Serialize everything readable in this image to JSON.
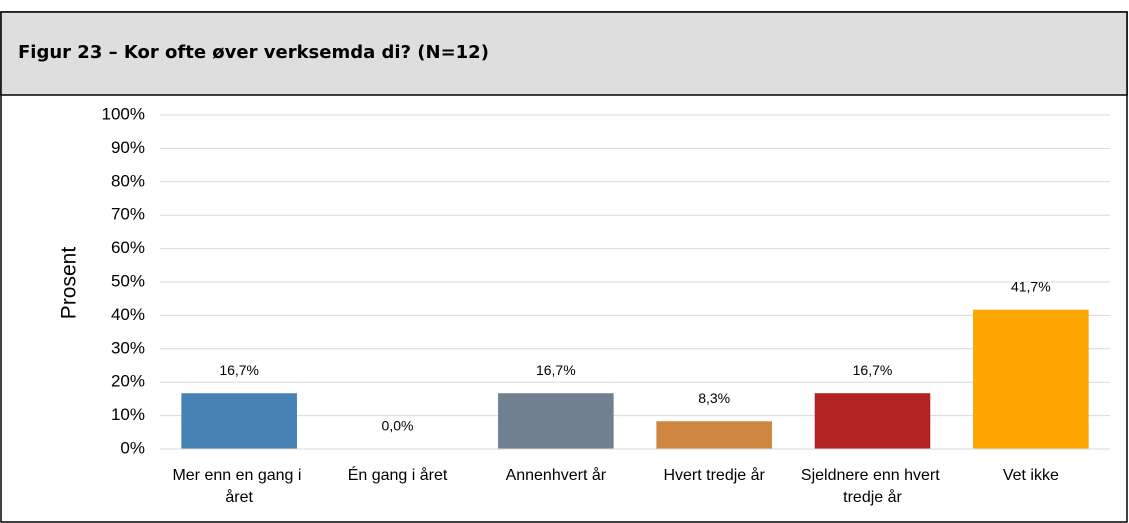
{
  "chart_data": {
    "type": "bar",
    "title": "Figur 23 – Kor ofte øver verksemda di? (N=12)",
    "ylabel": "Prosent",
    "categories": [
      "Mer enn en gang i året",
      "Én gang i året",
      "Annenhvert år",
      "Hvert tredje år",
      "Sjeldnere enn hvert tredje år",
      "Vet ikke"
    ],
    "values": [
      16.7,
      0.0,
      16.7,
      8.3,
      16.7,
      41.7
    ],
    "value_labels": [
      "16,7%",
      "0,0%",
      "16,7%",
      "8,3%",
      "16,7%",
      "41,7%"
    ],
    "colors": [
      "#4682b4",
      "#2e8b57",
      "#708090",
      "#cd853f",
      "#b22222",
      "#ffa500"
    ],
    "ylim": [
      0,
      100
    ],
    "yticks": [
      {
        "value": 0,
        "label": "0%"
      },
      {
        "value": 10,
        "label": "10%"
      },
      {
        "value": 20,
        "label": "20%"
      },
      {
        "value": 30,
        "label": "30%"
      },
      {
        "value": 40,
        "label": "40%"
      },
      {
        "value": 50,
        "label": "50%"
      },
      {
        "value": 60,
        "label": "60%"
      },
      {
        "value": 70,
        "label": "70%"
      },
      {
        "value": 80,
        "label": "80%"
      },
      {
        "value": 90,
        "label": "90%"
      },
      {
        "value": 100,
        "label": "100%"
      }
    ],
    "grid": true
  }
}
